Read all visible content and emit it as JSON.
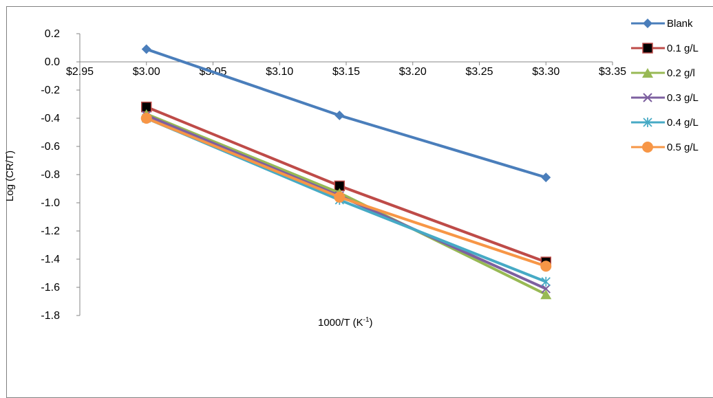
{
  "chart_data": {
    "type": "line",
    "title": "",
    "xlabel": "1000/T (K",
    "xlabel_sup": "-1",
    "xlabel_close": ")",
    "ylabel": "Log (CR/T)",
    "xlim": [
      2.95,
      3.35
    ],
    "ylim": [
      -1.8,
      0.2
    ],
    "x_ticks": [
      2.95,
      3.0,
      3.05,
      3.1,
      3.15,
      3.2,
      3.25,
      3.3,
      3.35
    ],
    "x_tick_labels": [
      "$2.95",
      "$3.00",
      "$3.05",
      "$3.10",
      "$3.15",
      "$3.20",
      "$3.25",
      "$3.30",
      "$3.35"
    ],
    "y_ticks": [
      0.2,
      0.0,
      -0.2,
      -0.4,
      -0.6,
      -0.8,
      -1.0,
      -1.2,
      -1.4,
      -1.6,
      -1.8
    ],
    "y_tick_labels": [
      "0.2",
      "0.0",
      "-0.2",
      "-0.4",
      "-0.6",
      "-0.8",
      "-1.0",
      "-1.2",
      "-1.4",
      "-1.6",
      "-1.8"
    ],
    "x": [
      3.0,
      3.145,
      3.3
    ],
    "grid": false,
    "legend_position": "right",
    "series": [
      {
        "name": "Blank",
        "color": "#4a7ebb",
        "marker": "diamond",
        "values": [
          0.09,
          -0.38,
          -0.82
        ]
      },
      {
        "name": "0.1 g/L",
        "color": "#be4b48",
        "marker": "square",
        "values": [
          -0.32,
          -0.88,
          -1.42
        ]
      },
      {
        "name": "0.2 g/l",
        "color": "#98b954",
        "marker": "triangle",
        "values": [
          -0.37,
          -0.93,
          -1.65
        ]
      },
      {
        "name": "0.3 g/L",
        "color": "#7d60a0",
        "marker": "x",
        "values": [
          -0.38,
          -0.95,
          -1.61
        ]
      },
      {
        "name": "0.4 g/L",
        "color": "#46aac5",
        "marker": "star",
        "values": [
          -0.4,
          -0.98,
          -1.56
        ]
      },
      {
        "name": "0.5 g/L",
        "color": "#f79646",
        "marker": "circle",
        "values": [
          -0.4,
          -0.96,
          -1.45
        ]
      }
    ]
  }
}
